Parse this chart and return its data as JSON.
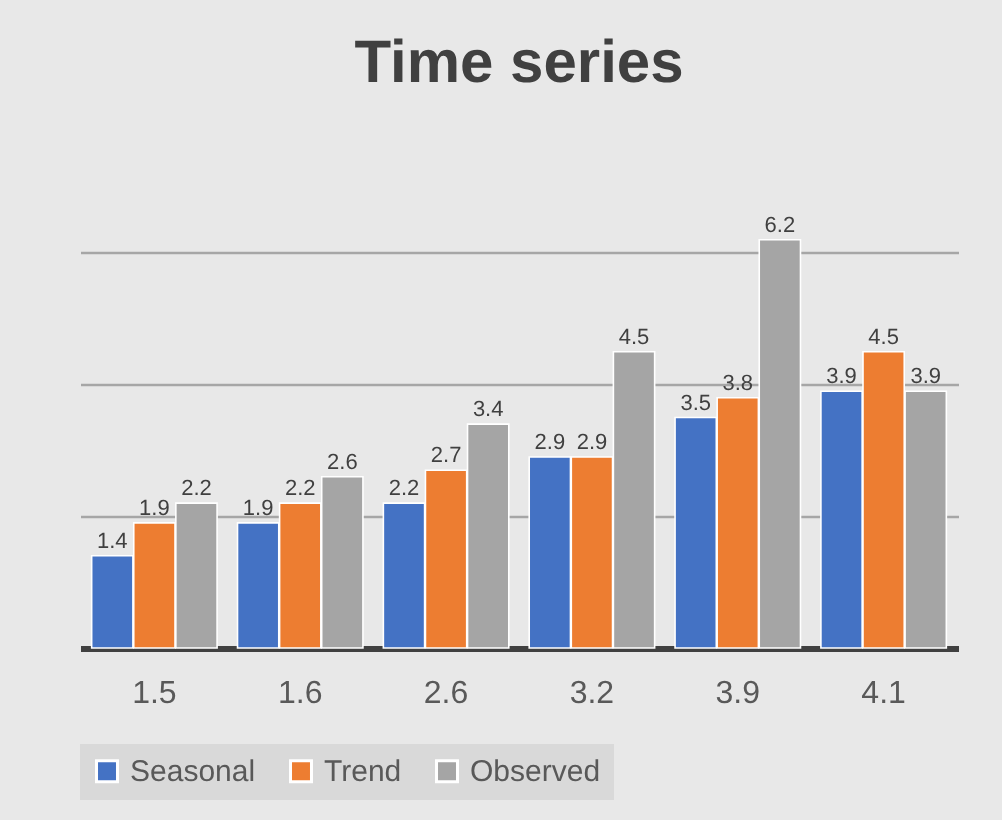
{
  "chart_data": {
    "type": "bar",
    "title": "Time series",
    "categories": [
      "1.5",
      "1.6",
      "2.6",
      "3.2",
      "3.9",
      "4.1"
    ],
    "series": [
      {
        "name": "Seasonal",
        "color": "#4472c4",
        "values": [
          1.4,
          1.9,
          2.2,
          2.9,
          3.5,
          3.9
        ]
      },
      {
        "name": "Trend",
        "color": "#ed7d31",
        "values": [
          1.9,
          2.2,
          2.7,
          2.9,
          3.8,
          4.5
        ]
      },
      {
        "name": "Observed",
        "color": "#a5a5a5",
        "values": [
          2.2,
          2.6,
          3.4,
          4.5,
          6.2,
          3.9
        ]
      }
    ],
    "yticks": [
      {
        "value": 0,
        "label": null
      },
      {
        "value": 2,
        "label": null
      },
      {
        "value": 4,
        "label": null
      },
      {
        "value": 6,
        "label": null
      }
    ],
    "tick_labels": "x",
    "grid": "y",
    "legend": "bottom",
    "data_labels": true
  }
}
